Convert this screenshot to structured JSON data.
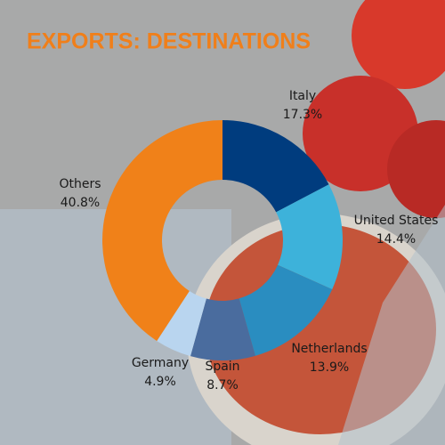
{
  "chart_data": {
    "type": "donut",
    "title": "EXPORTS: DESTINATIONS",
    "categories": [
      "Italy",
      "United States",
      "Netherlands",
      "Spain",
      "Germany",
      "Others"
    ],
    "values": [
      17.3,
      14.4,
      13.9,
      8.7,
      4.9,
      40.8
    ],
    "value_labels": [
      "17.3%",
      "14.4%",
      "13.9%",
      "8.7%",
      "4.9%",
      "40.8%"
    ],
    "colors": [
      "#003c7e",
      "#3db2da",
      "#2a8dc0",
      "#4a6c9e",
      "#b9d5ef",
      "#f08119"
    ]
  }
}
